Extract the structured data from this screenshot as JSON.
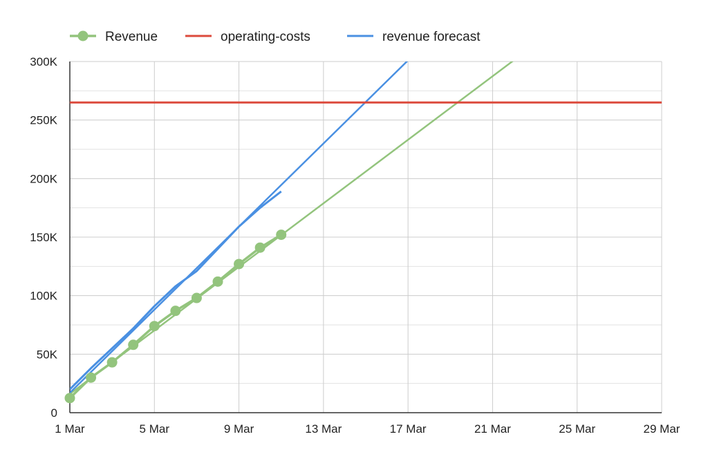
{
  "chart_data": {
    "type": "line",
    "title": "",
    "xlabel": "",
    "ylabel": "",
    "x_ticks": [
      "1 Mar",
      "5 Mar",
      "9 Mar",
      "13 Mar",
      "17 Mar",
      "21 Mar",
      "25 Mar",
      "29 Mar"
    ],
    "y_ticks": [
      "0",
      "50K",
      "100K",
      "150K",
      "200K",
      "250K",
      "300K"
    ],
    "xlim": [
      "2020-03-01",
      "2020-03-29"
    ],
    "ylim": [
      0,
      300000
    ],
    "grid": true,
    "legend_position": "top",
    "series": [
      {
        "name": "Revenue",
        "color": "#93c47d",
        "markers": true,
        "points": [
          {
            "x": "2020-03-01",
            "y": 12500
          },
          {
            "x": "2020-03-02",
            "y": 30000
          },
          {
            "x": "2020-03-03",
            "y": 43000
          },
          {
            "x": "2020-03-04",
            "y": 58000
          },
          {
            "x": "2020-03-05",
            "y": 74000
          },
          {
            "x": "2020-03-06",
            "y": 87000
          },
          {
            "x": "2020-03-07",
            "y": 98000
          },
          {
            "x": "2020-03-08",
            "y": 112000
          },
          {
            "x": "2020-03-09",
            "y": 127000
          },
          {
            "x": "2020-03-10",
            "y": 141000
          },
          {
            "x": "2020-03-11",
            "y": 152000
          }
        ],
        "trendline": [
          {
            "x": "2020-03-01",
            "y": 16000
          },
          {
            "x": "2020-03-22",
            "y": 301000
          }
        ]
      },
      {
        "name": "operating-costs",
        "color": "#dc4a3c",
        "markers": false,
        "points": [
          {
            "x": "2020-03-01",
            "y": 265000
          },
          {
            "x": "2020-03-29",
            "y": 265000
          }
        ]
      },
      {
        "name": "revenue forecast",
        "color": "#4a90e2",
        "markers": false,
        "points": [
          {
            "x": "2020-03-01",
            "y": 20000
          },
          {
            "x": "2020-03-02",
            "y": 38000
          },
          {
            "x": "2020-03-03",
            "y": 55000
          },
          {
            "x": "2020-03-04",
            "y": 72000
          },
          {
            "x": "2020-03-05",
            "y": 91000
          },
          {
            "x": "2020-03-06",
            "y": 108000
          },
          {
            "x": "2020-03-07",
            "y": 121000
          },
          {
            "x": "2020-03-08",
            "y": 140000
          },
          {
            "x": "2020-03-09",
            "y": 159000
          },
          {
            "x": "2020-03-10",
            "y": 175000
          },
          {
            "x": "2020-03-11",
            "y": 189000
          }
        ],
        "trendline": [
          {
            "x": "2020-03-01",
            "y": 17000
          },
          {
            "x": "2020-03-17",
            "y": 301000
          }
        ]
      }
    ]
  }
}
